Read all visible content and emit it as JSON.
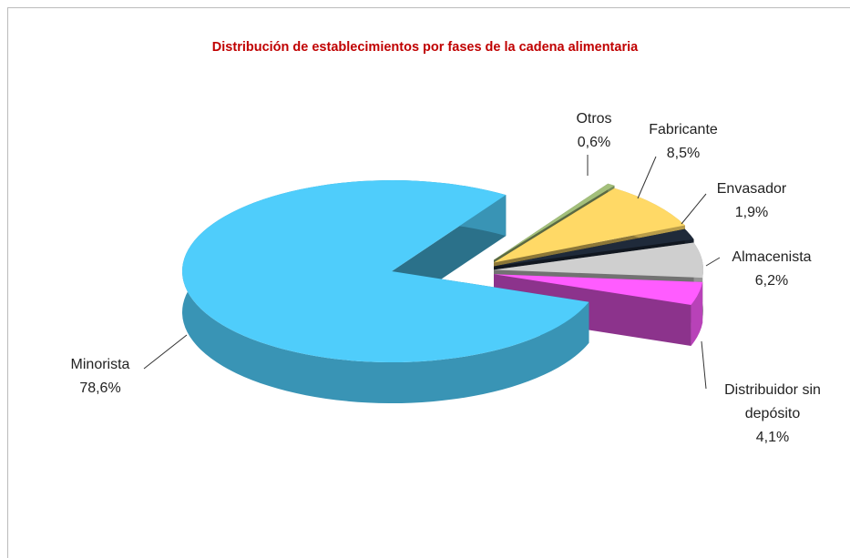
{
  "chart_data": {
    "type": "pie",
    "title": "Distribución de establecimientos por fases de la cadena alimentaria",
    "categories": [
      "Otros",
      "Fabricante",
      "Envasador",
      "Almacenista",
      "Distribuidor sin depósito",
      "Minorista"
    ],
    "values": [
      0.6,
      8.5,
      1.9,
      6.2,
      4.1,
      78.6
    ],
    "value_labels": [
      "0,6%",
      "8,5%",
      "1,9%",
      "6,2%",
      "4,1%",
      "78,6%"
    ],
    "colors": [
      "#a3bf7a",
      "#ffd966",
      "#1f2a3a",
      "#cfcfcf",
      "#ff5cff",
      "#4fcdfb"
    ]
  }
}
